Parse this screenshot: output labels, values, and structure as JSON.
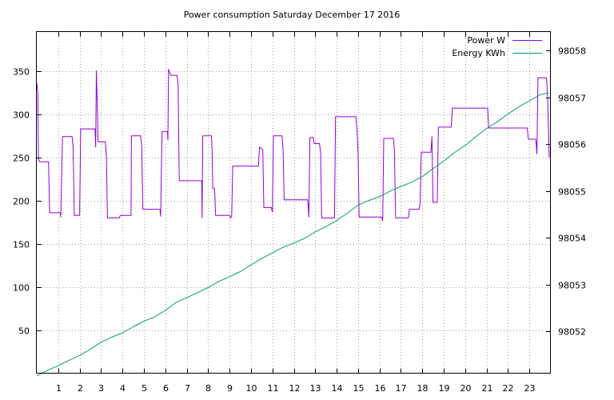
{
  "chart_data": {
    "type": "line",
    "title": "Power consumption Saturday December 17 2016",
    "xlabel": "",
    "ylabel": "",
    "y2label": "",
    "xlim": [
      0,
      24
    ],
    "ylim": [
      0,
      395
    ],
    "y2lim": [
      98051.1,
      98058.4
    ],
    "x_ticks": [
      1,
      2,
      3,
      4,
      5,
      6,
      7,
      8,
      9,
      10,
      11,
      12,
      13,
      14,
      15,
      16,
      17,
      18,
      19,
      20,
      21,
      22,
      23
    ],
    "y_ticks": [
      50,
      100,
      150,
      200,
      250,
      300,
      350
    ],
    "y2_ticks": [
      98052,
      98053,
      98054,
      98055,
      98056,
      98057,
      98058
    ],
    "grid": true,
    "legend_position": "top-right",
    "series": [
      {
        "name": "Power W",
        "axis": "left",
        "color": "#9400d3",
        "points": [
          [
            0.0,
            336
          ],
          [
            0.05,
            325
          ],
          [
            0.08,
            250
          ],
          [
            0.12,
            245
          ],
          [
            0.55,
            245
          ],
          [
            0.6,
            186
          ],
          [
            1.1,
            186
          ],
          [
            1.12,
            181
          ],
          [
            1.2,
            274
          ],
          [
            1.65,
            274
          ],
          [
            1.7,
            262
          ],
          [
            1.75,
            183
          ],
          [
            2.0,
            183
          ],
          [
            2.05,
            283
          ],
          [
            2.72,
            283
          ],
          [
            2.75,
            262
          ],
          [
            2.78,
            350
          ],
          [
            2.82,
            315
          ],
          [
            2.86,
            268
          ],
          [
            3.2,
            268
          ],
          [
            3.25,
            252
          ],
          [
            3.3,
            180
          ],
          [
            3.85,
            180
          ],
          [
            3.9,
            183
          ],
          [
            4.4,
            183
          ],
          [
            4.42,
            275
          ],
          [
            4.85,
            275
          ],
          [
            4.9,
            262
          ],
          [
            4.95,
            190
          ],
          [
            5.75,
            190
          ],
          [
            5.78,
            182
          ],
          [
            5.85,
            280
          ],
          [
            6.1,
            280
          ],
          [
            6.12,
            270
          ],
          [
            6.15,
            352
          ],
          [
            6.25,
            345
          ],
          [
            6.55,
            345
          ],
          [
            6.6,
            333
          ],
          [
            6.65,
            223
          ],
          [
            7.7,
            223
          ],
          [
            7.72,
            180
          ],
          [
            7.75,
            275
          ],
          [
            8.15,
            275
          ],
          [
            8.18,
            260
          ],
          [
            8.22,
            214
          ],
          [
            8.3,
            214
          ],
          [
            8.35,
            183
          ],
          [
            9.0,
            183
          ],
          [
            9.05,
            180
          ],
          [
            9.1,
            183
          ],
          [
            9.15,
            240
          ],
          [
            10.35,
            240
          ],
          [
            10.4,
            262
          ],
          [
            10.55,
            259
          ],
          [
            10.6,
            192
          ],
          [
            10.95,
            192
          ],
          [
            11.0,
            187
          ],
          [
            11.05,
            275
          ],
          [
            11.45,
            275
          ],
          [
            11.5,
            258
          ],
          [
            11.55,
            201
          ],
          [
            12.65,
            201
          ],
          [
            12.7,
            181
          ],
          [
            12.75,
            273
          ],
          [
            12.9,
            273
          ],
          [
            12.95,
            266
          ],
          [
            13.2,
            266
          ],
          [
            13.25,
            256
          ],
          [
            13.3,
            180
          ],
          [
            13.9,
            180
          ],
          [
            13.95,
            297
          ],
          [
            14.9,
            297
          ],
          [
            14.95,
            282
          ],
          [
            15.0,
            256
          ],
          [
            15.05,
            181
          ],
          [
            16.1,
            181
          ],
          [
            16.15,
            177
          ],
          [
            16.2,
            272
          ],
          [
            16.65,
            272
          ],
          [
            16.7,
            257
          ],
          [
            16.75,
            180
          ],
          [
            17.35,
            180
          ],
          [
            17.4,
            190
          ],
          [
            17.85,
            190
          ],
          [
            17.9,
            198
          ],
          [
            17.95,
            256
          ],
          [
            18.4,
            256
          ],
          [
            18.45,
            274
          ],
          [
            18.5,
            198
          ],
          [
            18.7,
            198
          ],
          [
            18.75,
            285
          ],
          [
            19.35,
            285
          ],
          [
            19.4,
            307
          ],
          [
            21.05,
            307
          ],
          [
            21.1,
            284
          ],
          [
            22.9,
            284
          ],
          [
            22.95,
            271
          ],
          [
            23.3,
            271
          ],
          [
            23.35,
            254
          ],
          [
            23.4,
            342
          ],
          [
            23.8,
            342
          ],
          [
            23.85,
            320
          ],
          [
            23.92,
            250
          ]
        ]
      },
      {
        "name": "Energy KWh",
        "axis": "right",
        "color": "#009e73",
        "points": [
          [
            0.0,
            98051.05
          ],
          [
            0.5,
            98051.17
          ],
          [
            1.0,
            98051.27
          ],
          [
            1.5,
            98051.38
          ],
          [
            2.0,
            98051.49
          ],
          [
            2.5,
            98051.62
          ],
          [
            3.0,
            98051.77
          ],
          [
            3.5,
            98051.88
          ],
          [
            4.0,
            98051.97
          ],
          [
            4.5,
            98052.1
          ],
          [
            5.0,
            98052.22
          ],
          [
            5.5,
            98052.31
          ],
          [
            6.0,
            98052.45
          ],
          [
            6.5,
            98052.62
          ],
          [
            7.0,
            98052.72
          ],
          [
            7.5,
            98052.83
          ],
          [
            8.0,
            98052.94
          ],
          [
            8.5,
            98053.07
          ],
          [
            9.0,
            98053.17
          ],
          [
            9.5,
            98053.28
          ],
          [
            10.0,
            98053.42
          ],
          [
            10.5,
            98053.56
          ],
          [
            11.0,
            98053.68
          ],
          [
            11.5,
            98053.8
          ],
          [
            12.0,
            98053.89
          ],
          [
            12.5,
            98053.99
          ],
          [
            13.0,
            98054.13
          ],
          [
            13.5,
            98054.24
          ],
          [
            14.0,
            98054.37
          ],
          [
            14.5,
            98054.53
          ],
          [
            15.0,
            98054.7
          ],
          [
            15.5,
            98054.8
          ],
          [
            16.0,
            98054.88
          ],
          [
            16.5,
            98055.0
          ],
          [
            17.0,
            98055.1
          ],
          [
            17.5,
            98055.19
          ],
          [
            18.0,
            98055.31
          ],
          [
            18.5,
            98055.48
          ],
          [
            19.0,
            98055.64
          ],
          [
            19.5,
            98055.82
          ],
          [
            20.0,
            98055.98
          ],
          [
            20.5,
            98056.16
          ],
          [
            21.0,
            98056.34
          ],
          [
            21.5,
            98056.48
          ],
          [
            22.0,
            98056.65
          ],
          [
            22.5,
            98056.8
          ],
          [
            23.0,
            98056.93
          ],
          [
            23.5,
            98057.06
          ],
          [
            23.9,
            98057.1
          ]
        ]
      }
    ]
  }
}
